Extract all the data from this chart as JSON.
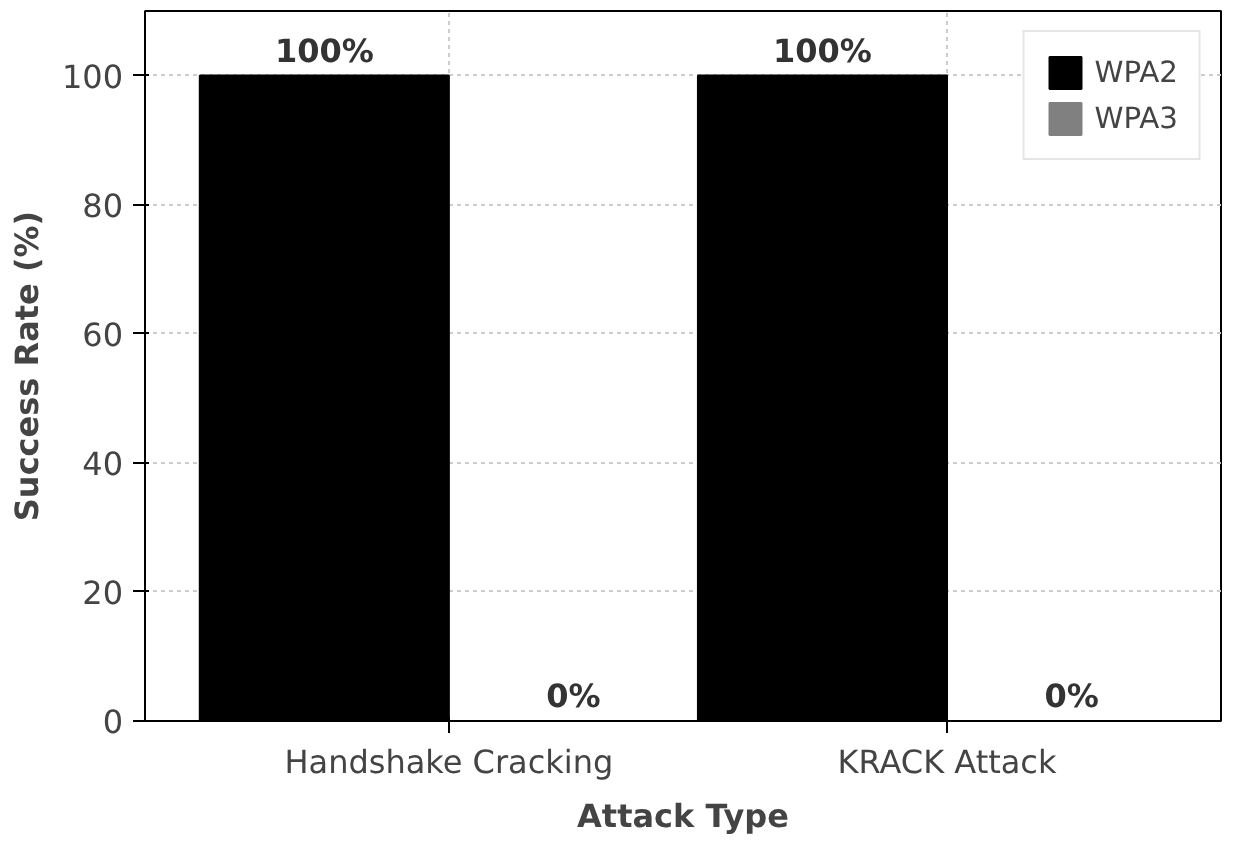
{
  "chart_data": {
    "type": "bar",
    "xlabel": "Attack Type",
    "ylabel": "Success Rate (%)",
    "categories": [
      "Handshake Cracking",
      "KRACK Attack"
    ],
    "series": [
      {
        "name": "WPA2",
        "color": "#000000",
        "values": [
          100,
          100
        ],
        "value_labels": [
          "100%",
          "100%"
        ]
      },
      {
        "name": "WPA3",
        "color": "#808080",
        "values": [
          0,
          0
        ],
        "value_labels": [
          "0%",
          "0%"
        ]
      }
    ],
    "ylim": [
      0,
      110
    ],
    "yticks": [
      0,
      20,
      40,
      60,
      80,
      100
    ],
    "grid": true,
    "legend": "top right"
  }
}
